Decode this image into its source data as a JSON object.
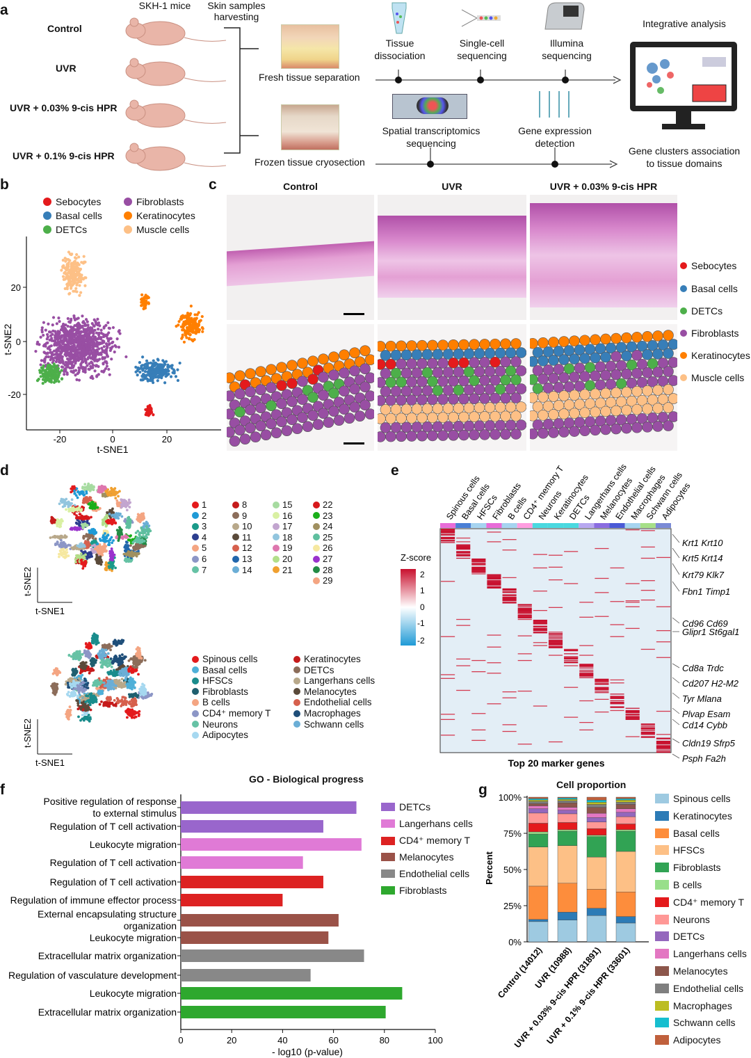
{
  "panel_a": {
    "label": "a",
    "mouse_header": "SKH-1 mice",
    "harvest_header": "Skin samples\nharvesting",
    "groups": [
      "Control",
      "UVR",
      "UVR + 0.03% 9-cis HPR",
      "UVR + 0.1% 9-cis HPR"
    ],
    "fresh_label": "Fresh tissue separation",
    "frozen_label": "Frozen tissue cryosection",
    "steps_top": [
      "Tissue\ndissociation",
      "Single-cell\nsequencing",
      "Illumina\nsequencing"
    ],
    "steps_bottom": [
      "Spatial transcriptomics\nsequencing",
      "Gene expression\ndetection"
    ],
    "integrative": "Integrative analysis",
    "gene_clusters": "Gene clusters association\nto tissue domains"
  },
  "panel_b": {
    "label": "b",
    "legend": [
      {
        "name": "Sebocytes",
        "color": "#e41a1c"
      },
      {
        "name": "Fibroblasts",
        "color": "#984ea3"
      },
      {
        "name": "Basal cells",
        "color": "#377eb8"
      },
      {
        "name": "Keratinocytes",
        "color": "#ff7f00"
      },
      {
        "name": "DETCs",
        "color": "#4daf4a"
      },
      {
        "name": "Muscle cells",
        "color": "#fdc086"
      }
    ],
    "xlabel": "t-SNE1",
    "ylabel": "t-SNE2",
    "xticks": [
      "-20",
      "0",
      "20"
    ],
    "yticks": [
      "20",
      "0",
      "-20"
    ]
  },
  "panel_c": {
    "label": "c",
    "columns": [
      "Control",
      "UVR",
      "UVR + 0.03% 9-cis HPR"
    ],
    "legend": [
      {
        "name": "Sebocytes",
        "color": "#e41a1c"
      },
      {
        "name": "Basal cells",
        "color": "#377eb8"
      },
      {
        "name": "DETCs",
        "color": "#4daf4a"
      },
      {
        "name": "Fibroblasts",
        "color": "#984ea3"
      },
      {
        "name": "Keratinocytes",
        "color": "#ff7f00"
      },
      {
        "name": "Muscle cells",
        "color": "#fdc086"
      }
    ]
  },
  "panel_d": {
    "label": "d",
    "clusters": [
      {
        "id": "1",
        "color": "#e41a1c"
      },
      {
        "id": "2",
        "color": "#1f9ad6"
      },
      {
        "id": "3",
        "color": "#1a9a8a"
      },
      {
        "id": "4",
        "color": "#2c3e8f"
      },
      {
        "id": "5",
        "color": "#f4a582"
      },
      {
        "id": "6",
        "color": "#8c96c6"
      },
      {
        "id": "7",
        "color": "#66c2a5"
      },
      {
        "id": "8",
        "color": "#c51b1b"
      },
      {
        "id": "9",
        "color": "#8c6d5a"
      },
      {
        "id": "10",
        "color": "#b8a88a"
      },
      {
        "id": "11",
        "color": "#5a4a3a"
      },
      {
        "id": "12",
        "color": "#d6604d"
      },
      {
        "id": "13",
        "color": "#2166ac"
      },
      {
        "id": "14",
        "color": "#6baed6"
      },
      {
        "id": "15",
        "color": "#a6dba0"
      },
      {
        "id": "16",
        "color": "#d9f0a3"
      },
      {
        "id": "17",
        "color": "#c2a5cf"
      },
      {
        "id": "18",
        "color": "#92c5de"
      },
      {
        "id": "19",
        "color": "#de77ae"
      },
      {
        "id": "20",
        "color": "#b2df8a"
      },
      {
        "id": "21",
        "color": "#f0a030"
      },
      {
        "id": "22",
        "color": "#d7191c"
      },
      {
        "id": "23",
        "color": "#1aaf1a"
      },
      {
        "id": "24",
        "color": "#a09060"
      },
      {
        "id": "25",
        "color": "#5fbf9f"
      },
      {
        "id": "26",
        "color": "#f6e8a0"
      },
      {
        "id": "27",
        "color": "#9a32cd"
      },
      {
        "id": "28",
        "color": "#238b45"
      },
      {
        "id": "29",
        "color": "#f4a582"
      }
    ],
    "celltypes": [
      {
        "name": "Spinous cells",
        "color": "#e41a1c"
      },
      {
        "name": "Keratinocytes",
        "color": "#c51b1b"
      },
      {
        "name": "Basal cells",
        "color": "#4fb0d8"
      },
      {
        "name": "DETCs",
        "color": "#8c6d5a"
      },
      {
        "name": "HFSCs",
        "color": "#1a8c8c"
      },
      {
        "name": "Langerhans cells",
        "color": "#b8a88a"
      },
      {
        "name": "Fibroblasts",
        "color": "#1f5f6f"
      },
      {
        "name": "Melanocytes",
        "color": "#5a4a3a"
      },
      {
        "name": "B cells",
        "color": "#f4a582"
      },
      {
        "name": "Endothelial cells",
        "color": "#d6604d"
      },
      {
        "name": "CD4⁺ memory T",
        "color": "#8c96c6"
      },
      {
        "name": "Macrophages",
        "color": "#1f4e79"
      },
      {
        "name": "Neurons",
        "color": "#66c2a5"
      },
      {
        "name": "Schwann cells",
        "color": "#6baed6"
      },
      {
        "name": "Adipocytes",
        "color": "#a6d8f0"
      }
    ],
    "xlabel": "t-SNE1",
    "ylabel": "t-SNE2"
  },
  "panel_e": {
    "label": "e",
    "columns": [
      "Spinous cells",
      "Basal cells",
      "HFSCs",
      "Fibroblasts",
      "B cells",
      "CD4⁺ memory T",
      "Neurons",
      "Keratinocytes",
      "DETCs",
      "Langerhans cells",
      "Melanocytes",
      "Endothelial cells",
      "Macrophages",
      "Schwann cells",
      "Adipocytes"
    ],
    "column_colors": [
      "#e86bd8",
      "#4a7fd6",
      "#a6d4f0",
      "#e86bd8",
      "#a6d4f0",
      "#ff9de0",
      "#4ad9e0",
      "#4ad9e0",
      "#4ad9e0",
      "#b8a8f0",
      "#8a6ce0",
      "#4a5ad6",
      "#a6d4f0",
      "#a6e088",
      "#7a8ad6"
    ],
    "genes": [
      "Krt1 Krt10",
      "Krt5 Krt14",
      "Krt79 Klk7",
      "Fbn1 Timp1",
      "Cd96 Cd69",
      "Glipr1 St6gal1",
      "Cd8a Trdc",
      "Cd207 H2-M2",
      "Tyr Mlana",
      "Plvap Esam",
      "Cd14 Cybb",
      "Cldn19 Sfrp5",
      "Psph Fa2h"
    ],
    "zscore_title": "Z-score",
    "zscore_ticks": [
      "2",
      "1",
      "0",
      "-1",
      "-2"
    ],
    "footer": "Top 20 marker genes"
  },
  "panel_f": {
    "label": "f",
    "chart_data": {
      "type": "bar",
      "orientation": "horizontal",
      "title": "GO - Biological progress",
      "xlabel": "- log10 (p-value)",
      "xlim": [
        0,
        100
      ],
      "xticks": [
        "0",
        "20",
        "40",
        "60",
        "80",
        "100"
      ],
      "categories": [
        "Positive regulation of response to external stimulus",
        "Regulation of T cell activation",
        "Leukocyte migration",
        "Regulation of T cell activation",
        "Regulation of T cell activation",
        "Regulation of immune effector process",
        "External encapsulating structure organization",
        "Leukocyte migration",
        "Extracellular matrix organization",
        "Regulation of vasculature development",
        "Leukocyte migration",
        "Extracellular matrix organization"
      ],
      "values": [
        69,
        56,
        71,
        48,
        56,
        40,
        62,
        58,
        72,
        51,
        87,
        80.5
      ],
      "groups": [
        "DETCs",
        "DETCs",
        "Langerhans cells",
        "Langerhans cells",
        "CD4⁺ memory T",
        "CD4⁺ memory T",
        "Melanocytes",
        "Melanocytes",
        "Endothelial cells",
        "Endothelial cells",
        "Fibroblasts",
        "Fibroblasts"
      ],
      "legend": [
        {
          "name": "DETCs",
          "color": "#9966cc"
        },
        {
          "name": "Langerhans cells",
          "color": "#e07ad6"
        },
        {
          "name": "CD4⁺ memory T",
          "color": "#dd2222"
        },
        {
          "name": "Melanocytes",
          "color": "#9a5248"
        },
        {
          "name": "Endothelial cells",
          "color": "#888888"
        },
        {
          "name": "Fibroblasts",
          "color": "#2ea82e"
        }
      ]
    }
  },
  "panel_g": {
    "label": "g",
    "chart_data": {
      "type": "bar",
      "stacked": true,
      "title": "Cell proportion",
      "ylabel": "Percent",
      "yticks": [
        "0%",
        "25%",
        "50%",
        "75%",
        "100%"
      ],
      "ylim": [
        0,
        100
      ],
      "categories": [
        "Control (14012)",
        "UVR (10988)",
        "UVR + 0.03% 9-cis HPR (31891)",
        "UVR + 0.1% 9-cis HPR (33601)"
      ],
      "series": [
        {
          "name": "Spinous cells",
          "color": "#9ecae1",
          "values": [
            14,
            15,
            18,
            13
          ]
        },
        {
          "name": "Keratinocytes",
          "color": "#2c7bb6",
          "values": [
            1.5,
            5.5,
            5,
            4.5
          ]
        },
        {
          "name": "Basal cells",
          "color": "#fd8d3c",
          "values": [
            23,
            20,
            13,
            17
          ]
        },
        {
          "name": "HFSCs",
          "color": "#fdc086",
          "values": [
            27,
            26,
            22,
            28
          ]
        },
        {
          "name": "Fibroblasts",
          "color": "#31a354",
          "values": [
            9,
            10,
            14,
            14
          ]
        },
        {
          "name": "B cells",
          "color": "#98df8a",
          "values": [
            1.5,
            1,
            1,
            1
          ]
        },
        {
          "name": "CD4⁺ memory T",
          "color": "#e41a1c",
          "values": [
            6,
            5,
            4.5,
            4
          ]
        },
        {
          "name": "Neurons",
          "color": "#ff9896",
          "values": [
            7,
            6,
            4.5,
            5
          ]
        },
        {
          "name": "DETCs",
          "color": "#9467bd",
          "values": [
            3,
            2.5,
            3,
            3
          ]
        },
        {
          "name": "Langerhans cells",
          "color": "#e377c2",
          "values": [
            2,
            2,
            3,
            2.5
          ]
        },
        {
          "name": "Melanocytes",
          "color": "#8c564b",
          "values": [
            1.5,
            3,
            4,
            3
          ]
        },
        {
          "name": "Endothelial cells",
          "color": "#7f7f7f",
          "values": [
            1.5,
            1.5,
            2,
            1.5
          ]
        },
        {
          "name": "Macrophages",
          "color": "#bcbd22",
          "values": [
            1,
            1,
            1.5,
            1.5
          ]
        },
        {
          "name": "Schwann cells",
          "color": "#17becf",
          "values": [
            1,
            1,
            1.5,
            1
          ]
        },
        {
          "name": "Adipocytes",
          "color": "#c0603c",
          "values": [
            1,
            0.5,
            2,
            1
          ]
        }
      ]
    }
  }
}
